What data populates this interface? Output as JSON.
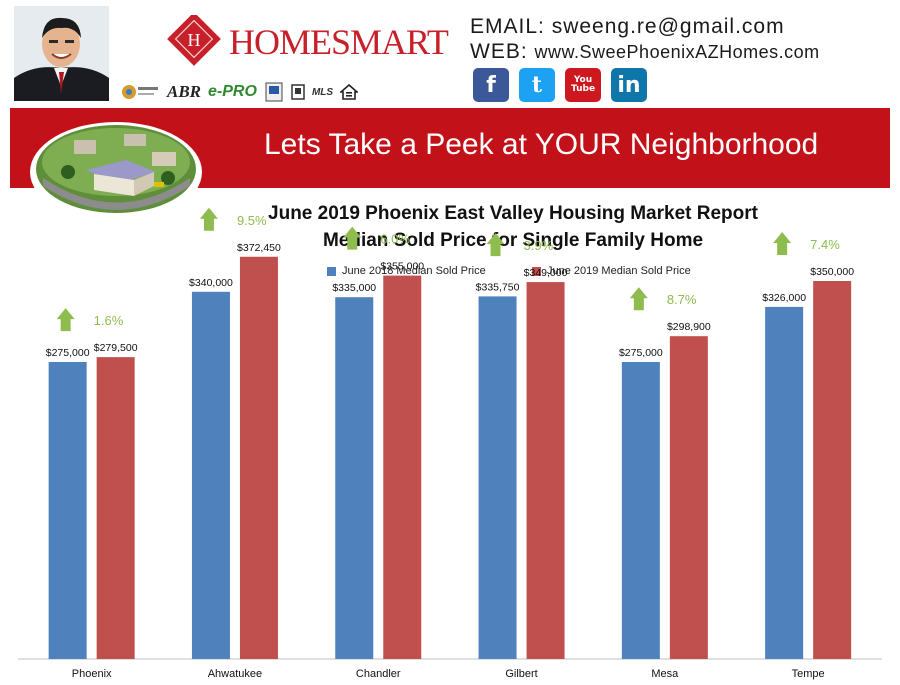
{
  "header": {
    "brand_name": "HOMESMART",
    "contact_email_label": "EMAIL:",
    "contact_email": "sweeng.re@gmail.com",
    "contact_web_label": "WEB:",
    "contact_web": "www.SweePhoenixAZHomes.com",
    "badges": [
      "ABR",
      "e-PRO",
      "MLS"
    ],
    "social_icons": [
      "facebook-icon",
      "twitter-icon",
      "youtube-icon",
      "linkedin-icon"
    ],
    "social_glyphs": [
      "f",
      "t",
      "You Tube",
      "in"
    ]
  },
  "banner": {
    "text": "Lets Take a Peek at YOUR Neighborhood",
    "color": "#c3111a"
  },
  "colors": {
    "series_2018": "#4f81bd",
    "series_2019": "#c0504d",
    "up_arrow": "#8fbc4f",
    "pct_text": "#8fbc4f"
  },
  "chart_data": {
    "type": "bar",
    "title": "June 2019 Phoenix East Valley Housing Market Report",
    "subtitle": "Median Sold Price for Single Family Home",
    "categories": [
      "Phoenix",
      "Ahwatukee",
      "Chandler",
      "Gilbert",
      "Mesa",
      "Tempe"
    ],
    "series": [
      {
        "name": "June 2018 Median Sold Price",
        "values": [
          275000,
          340000,
          335000,
          335750,
          275000,
          326000
        ],
        "labels": [
          "$275,000",
          "$340,000",
          "$335,000",
          "$335,750",
          "$275,000",
          "$326,000"
        ]
      },
      {
        "name": "June 2019 Median Sold Price",
        "values": [
          279500,
          372450,
          355000,
          349000,
          298900,
          350000
        ],
        "labels": [
          "$279,500",
          "$372,450",
          "$355,000",
          "$349,000",
          "$298,900",
          "$350,000"
        ]
      }
    ],
    "change_labels": [
      "1.6%",
      "9.5%",
      "6.0%",
      "3.9%",
      "8.7%",
      "7.4%"
    ],
    "change_direction": [
      "up",
      "up",
      "up",
      "up",
      "up",
      "up"
    ],
    "ylim": [
      0,
      400000
    ],
    "legend_position": "top",
    "grid": false
  }
}
